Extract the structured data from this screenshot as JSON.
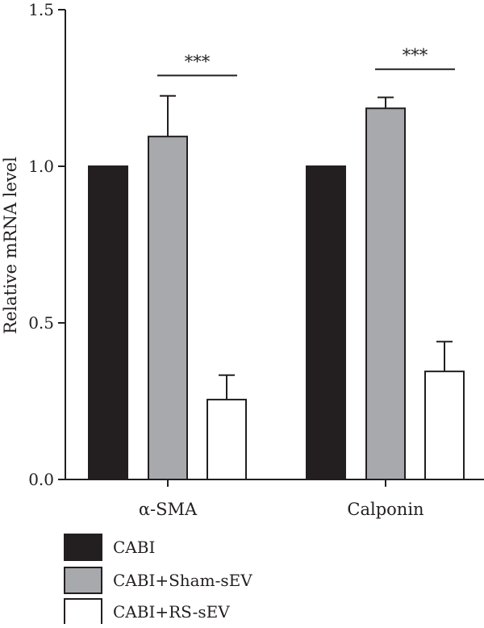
{
  "chart_data": {
    "type": "bar",
    "title": "",
    "xlabel": "",
    "ylabel": "Relative mRNA level",
    "ylim": [
      0,
      1.5
    ],
    "yticks": [
      "0.0",
      "0.5",
      "1.0",
      "1.5"
    ],
    "grid": false,
    "legend_position": "bottom-left",
    "categories": [
      "α-SMA",
      "Calponin"
    ],
    "series": [
      {
        "name": "CABI",
        "color": "#231f20",
        "values": [
          1.0,
          1.0
        ],
        "errors": [
          0,
          0
        ]
      },
      {
        "name": "CABI+Sham-sEV",
        "color": "#a7a9ac",
        "values": [
          1.095,
          1.185
        ],
        "errors": [
          0.13,
          0.035
        ]
      },
      {
        "name": "CABI+RS-sEV",
        "color": "#ffffff",
        "values": [
          0.255,
          0.345
        ],
        "errors": [
          0.078,
          0.095
        ]
      }
    ],
    "annotations": [
      {
        "text": "***",
        "category": "α-SMA",
        "between": [
          "CABI+Sham-sEV",
          "CABI+RS-sEV"
        ],
        "level": 1.29
      },
      {
        "text": "***",
        "category": "Calponin",
        "between": [
          "CABI+Sham-sEV",
          "CABI+RS-sEV"
        ],
        "level": 1.31
      }
    ]
  }
}
